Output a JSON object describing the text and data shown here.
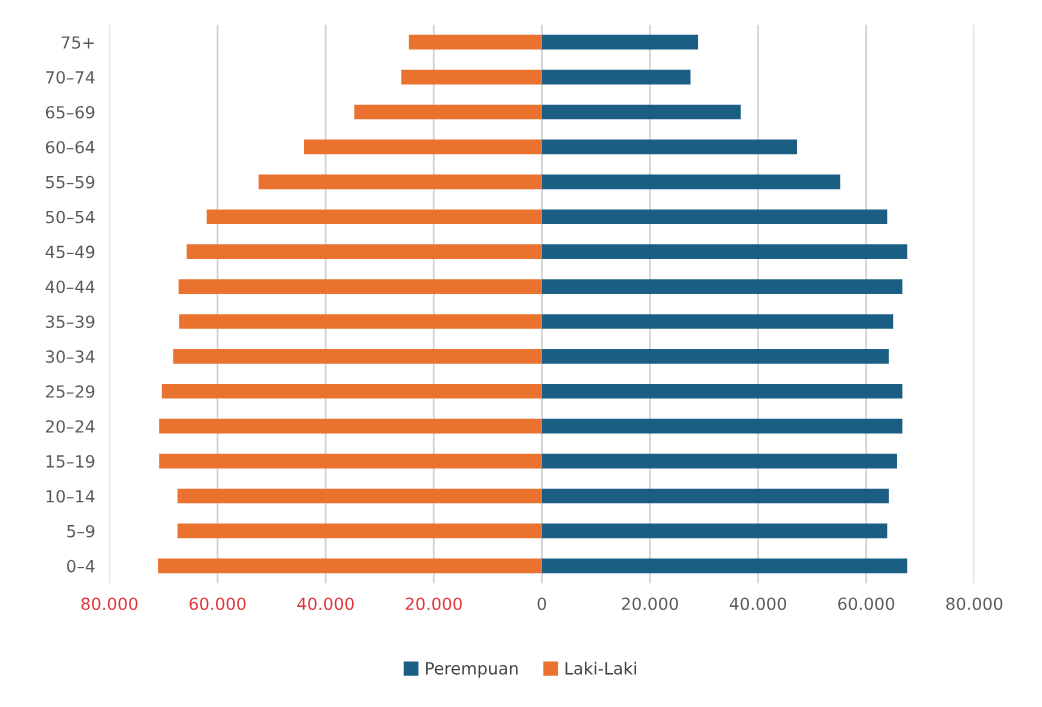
{
  "chart_data": {
    "type": "bar",
    "orientation": "horizontal",
    "categories": [
      "75+",
      "70–74",
      "65–69",
      "60–64",
      "55–59",
      "50–54",
      "45–49",
      "40–44",
      "35–39",
      "30–34",
      "25–29",
      "20–24",
      "15–19",
      "10–14",
      "5–9",
      "0–4"
    ],
    "series": [
      {
        "name": "Perempuan",
        "color": "#1b5e83",
        "values": [
          28900,
          27500,
          36800,
          47200,
          55200,
          63900,
          67600,
          66700,
          65000,
          64200,
          66700,
          66700,
          65700,
          64200,
          63900,
          67600
        ]
      },
      {
        "name": "Laki-Laki",
        "color": "#e8722e",
        "values": [
          -24600,
          -26000,
          -34700,
          -44000,
          -52400,
          -62000,
          -65700,
          -67200,
          -67100,
          -68200,
          -70300,
          -70800,
          -70800,
          -67400,
          -67400,
          -71000
        ]
      }
    ],
    "xlim": [
      -80000,
      80000
    ],
    "xticks": [
      {
        "value": -80000,
        "label": "80.000"
      },
      {
        "value": -60000,
        "label": "60.000"
      },
      {
        "value": -40000,
        "label": "40.000"
      },
      {
        "value": -20000,
        "label": "20.000"
      },
      0,
      {
        "value": 20000,
        "label": "20.000"
      },
      {
        "value": 40000,
        "label": "40.000"
      },
      {
        "value": 60000,
        "label": "60.000"
      },
      {
        "value": 80000,
        "label": "80.000"
      }
    ],
    "stacked": true,
    "grid": "x",
    "legend": "bottom"
  }
}
